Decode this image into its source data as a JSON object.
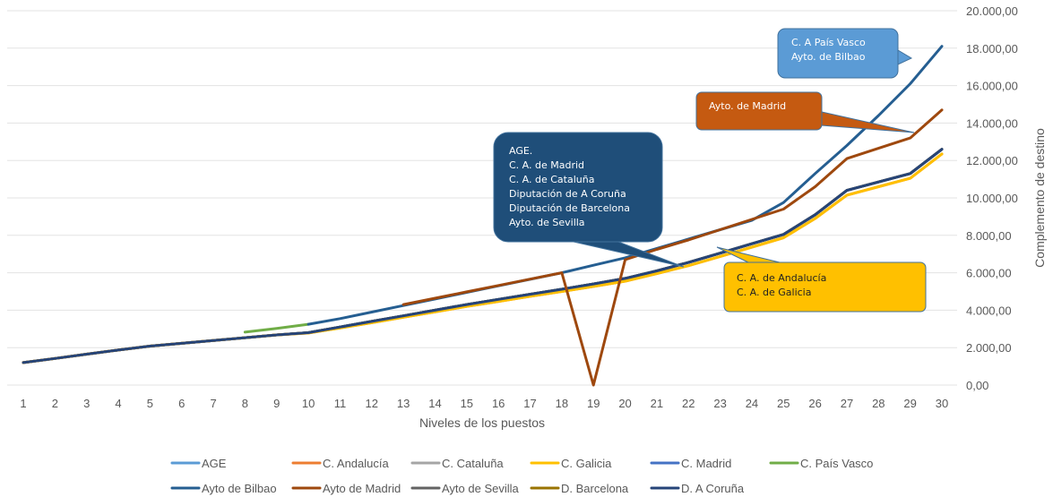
{
  "chart_data": {
    "type": "line",
    "title": "",
    "xlabel": "Niveles de los puestos",
    "ylabel": "Complemento de destino",
    "x": [
      1,
      2,
      3,
      4,
      5,
      6,
      7,
      8,
      9,
      10,
      11,
      12,
      13,
      14,
      15,
      16,
      17,
      18,
      19,
      20,
      21,
      22,
      23,
      24,
      25,
      26,
      27,
      28,
      29,
      30
    ],
    "ylim": [
      0,
      20000
    ],
    "yticks": [
      0,
      2000,
      4000,
      6000,
      8000,
      10000,
      12000,
      14000,
      16000,
      18000,
      20000
    ],
    "ytick_labels": [
      "0,00",
      "2.000,00",
      "4.000,00",
      "6.000,00",
      "8.000,00",
      "10.000,00",
      "12.000,00",
      "14.000,00",
      "16.000,00",
      "18.000,00",
      "20.000,00"
    ],
    "grid": true,
    "legend_position": "bottom",
    "series": [
      {
        "name": "AGE",
        "color": "#5B9BD5",
        "values": [
          1200,
          1420,
          1650,
          1870,
          2080,
          2230,
          2380,
          2530,
          2680,
          2800,
          3100,
          3400,
          3700,
          4000,
          4300,
          4580,
          4850,
          5120,
          5400,
          5700,
          6100,
          6550,
          7050,
          7550,
          8050,
          9100,
          10400,
          10850,
          11300,
          12600
        ]
      },
      {
        "name": "C. Andalucía",
        "color": "#ED7D31",
        "values": [
          1200,
          1420,
          1650,
          1870,
          2080,
          2230,
          2380,
          2530,
          2680,
          2780,
          3050,
          3330,
          3620,
          3910,
          4200,
          4470,
          4740,
          5000,
          5270,
          5550,
          5950,
          6380,
          6870,
          7370,
          7870,
          8900,
          10150,
          10600,
          11050,
          12350
        ]
      },
      {
        "name": "C. Cataluña",
        "color": "#A5A5A5",
        "values": [
          1200,
          1420,
          1650,
          1870,
          2080,
          2230,
          2380,
          2530,
          2680,
          2800,
          3100,
          3400,
          3700,
          4000,
          4300,
          4580,
          4850,
          5120,
          5400,
          5700,
          6100,
          6550,
          7050,
          7550,
          8050,
          9100,
          10400,
          10850,
          11300,
          12600
        ]
      },
      {
        "name": "C. Galicia",
        "color": "#FFC000",
        "values": [
          1200,
          1420,
          1650,
          1870,
          2080,
          2230,
          2380,
          2530,
          2680,
          2780,
          3050,
          3330,
          3620,
          3910,
          4200,
          4470,
          4740,
          5000,
          5270,
          5550,
          5950,
          6380,
          6870,
          7370,
          7870,
          8900,
          10150,
          10600,
          11050,
          12350
        ]
      },
      {
        "name": "C. Madrid",
        "color": "#4472C4",
        "values": [
          1200,
          1420,
          1650,
          1870,
          2080,
          2230,
          2380,
          2530,
          2680,
          2800,
          3100,
          3400,
          3700,
          4000,
          4300,
          4580,
          4850,
          5120,
          5400,
          5700,
          6100,
          6550,
          7050,
          7550,
          8050,
          9100,
          10400,
          10850,
          11300,
          12600
        ]
      },
      {
        "name": "C. País Vasco",
        "color": "#70AD47",
        "values": [
          null,
          null,
          null,
          null,
          null,
          null,
          null,
          2830,
          3030,
          3250,
          null,
          null,
          null,
          null,
          null,
          null,
          null,
          null,
          null,
          null,
          null,
          null,
          null,
          null,
          null,
          null,
          null,
          null,
          null,
          null
        ]
      },
      {
        "name": "Ayto de Bilbao",
        "color": "#255E91",
        "values": [
          null,
          null,
          null,
          null,
          null,
          null,
          null,
          null,
          null,
          3250,
          3550,
          3900,
          4250,
          4600,
          4950,
          5300,
          5650,
          6000,
          6400,
          6800,
          7300,
          7800,
          8300,
          8800,
          9750,
          11300,
          12800,
          14400,
          16100,
          18100
        ]
      },
      {
        "name": "Ayto de Madrid",
        "color": "#9E480E",
        "values": [
          null,
          null,
          null,
          null,
          null,
          null,
          null,
          null,
          null,
          null,
          null,
          null,
          4300,
          4640,
          4980,
          5320,
          5660,
          6000,
          0,
          6700,
          7250,
          7750,
          8300,
          8850,
          9400,
          10600,
          12100,
          12650,
          13200,
          14700
        ]
      },
      {
        "name": "Ayto de Sevilla",
        "color": "#636363",
        "values": [
          1200,
          1420,
          1650,
          1870,
          2080,
          2230,
          2380,
          2530,
          2680,
          2800,
          3100,
          3400,
          3700,
          4000,
          4300,
          4580,
          4850,
          5120,
          5400,
          5700,
          6100,
          6550,
          7050,
          7550,
          8050,
          9100,
          10400,
          10850,
          11300,
          12600
        ]
      },
      {
        "name": "D. Barcelona",
        "color": "#997300",
        "values": [
          1200,
          1420,
          1650,
          1870,
          2080,
          2230,
          2380,
          2530,
          2680,
          2800,
          3100,
          3400,
          3700,
          4000,
          4300,
          4580,
          4850,
          5120,
          5400,
          5700,
          6100,
          6550,
          7050,
          7550,
          8050,
          9100,
          10400,
          10850,
          11300,
          12600
        ]
      },
      {
        "name": "D. A Coruña",
        "color": "#264478",
        "values": [
          1200,
          1420,
          1650,
          1870,
          2080,
          2230,
          2380,
          2530,
          2680,
          2800,
          3100,
          3400,
          3700,
          4000,
          4300,
          4580,
          4850,
          5120,
          5400,
          5700,
          6100,
          6550,
          7050,
          7550,
          8050,
          9100,
          10400,
          10850,
          11300,
          12600
        ]
      }
    ],
    "annotations": [
      {
        "lines": [
          "C. A País Vasco",
          "Ayto. de Bilbao"
        ],
        "color": "#5B9BD5",
        "text_color": "#ffffff"
      },
      {
        "lines": [
          "Ayto. de Madrid"
        ],
        "color": "#C55A11",
        "text_color": "#ffffff"
      },
      {
        "lines": [
          "AGE.",
          "C. A. de Madrid",
          "C. A. de Cataluña",
          "Diputación de A Coruña",
          "Diputación de Barcelona",
          "Ayto. de Sevilla"
        ],
        "color": "#1F4E79",
        "text_color": "#ffffff"
      },
      {
        "lines": [
          "C. A. de Andalucía",
          "C. A. de Galicia"
        ],
        "color": "#FFC000",
        "text_color": "#222222"
      }
    ]
  }
}
